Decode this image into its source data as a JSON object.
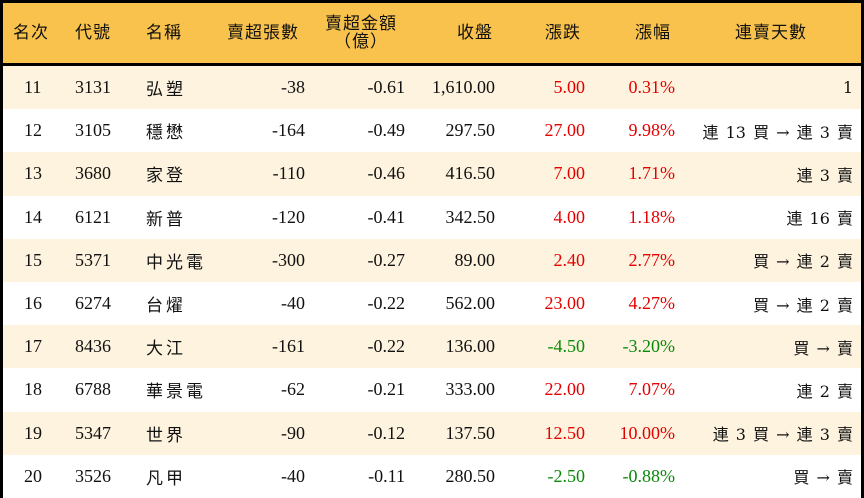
{
  "table": {
    "header": {
      "rank": "名次",
      "code": "代號",
      "name": "名稱",
      "net_sell_lots": "賣超張數",
      "net_sell_amount_line1": "賣超金額",
      "net_sell_amount_line2": "（億）",
      "close": "收盤",
      "change": "漲跌",
      "change_pct": "漲幅",
      "streak": "連賣天數"
    },
    "colors": {
      "header_bg": "#F9C24C",
      "row_odd_bg": "#FDF3DE",
      "row_even_bg": "#FFFFFF",
      "up": "#E50000",
      "down": "#0A8A0A",
      "border": "#000000"
    },
    "rows": [
      {
        "rank": "11",
        "code": "3131",
        "name": "弘塑",
        "lots": "-38",
        "amount": "-0.61",
        "close": "1,610.00",
        "change": "5.00",
        "pct": "0.31%",
        "streak": "1",
        "dir": "up"
      },
      {
        "rank": "12",
        "code": "3105",
        "name": "穩懋",
        "lots": "-164",
        "amount": "-0.49",
        "close": "297.50",
        "change": "27.00",
        "pct": "9.98%",
        "streak": "連 13 買 → 連 3 賣",
        "dir": "up"
      },
      {
        "rank": "13",
        "code": "3680",
        "name": "家登",
        "lots": "-110",
        "amount": "-0.46",
        "close": "416.50",
        "change": "7.00",
        "pct": "1.71%",
        "streak": "連 3 賣",
        "dir": "up"
      },
      {
        "rank": "14",
        "code": "6121",
        "name": "新普",
        "lots": "-120",
        "amount": "-0.41",
        "close": "342.50",
        "change": "4.00",
        "pct": "1.18%",
        "streak": "連 16 賣",
        "dir": "up"
      },
      {
        "rank": "15",
        "code": "5371",
        "name": "中光電",
        "lots": "-300",
        "amount": "-0.27",
        "close": "89.00",
        "change": "2.40",
        "pct": "2.77%",
        "streak": "買 → 連 2 賣",
        "dir": "up"
      },
      {
        "rank": "16",
        "code": "6274",
        "name": "台燿",
        "lots": "-40",
        "amount": "-0.22",
        "close": "562.00",
        "change": "23.00",
        "pct": "4.27%",
        "streak": "買 → 連 2 賣",
        "dir": "up"
      },
      {
        "rank": "17",
        "code": "8436",
        "name": "大江",
        "lots": "-161",
        "amount": "-0.22",
        "close": "136.00",
        "change": "-4.50",
        "pct": "-3.20%",
        "streak": "買 → 賣",
        "dir": "down"
      },
      {
        "rank": "18",
        "code": "6788",
        "name": "華景電",
        "lots": "-62",
        "amount": "-0.21",
        "close": "333.00",
        "change": "22.00",
        "pct": "7.07%",
        "streak": "連 2 賣",
        "dir": "up"
      },
      {
        "rank": "19",
        "code": "5347",
        "name": "世界",
        "lots": "-90",
        "amount": "-0.12",
        "close": "137.50",
        "change": "12.50",
        "pct": "10.00%",
        "streak": "連 3 買 → 連 3 賣",
        "dir": "up"
      },
      {
        "rank": "20",
        "code": "3526",
        "name": "凡甲",
        "lots": "-40",
        "amount": "-0.11",
        "close": "280.50",
        "change": "-2.50",
        "pct": "-0.88%",
        "streak": "買 → 賣",
        "dir": "down"
      }
    ]
  }
}
